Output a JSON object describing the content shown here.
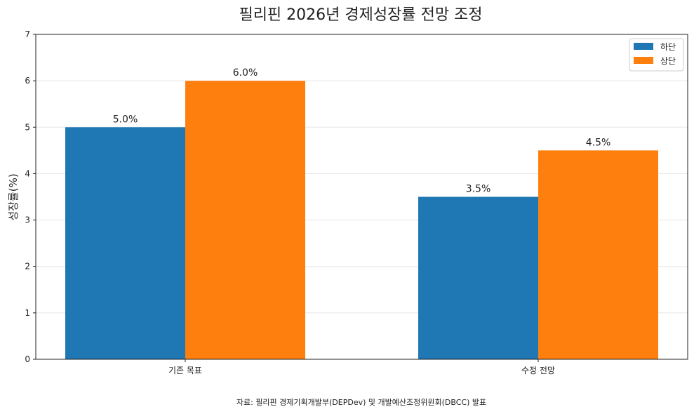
{
  "chart_data": {
    "type": "bar",
    "title": "필리핀 2026년 경제성장률 전망 조정",
    "xlabel": "",
    "ylabel": "성장률(%)",
    "categories": [
      "기존 목표",
      "수정 전망"
    ],
    "series": [
      {
        "name": "하단",
        "values": [
          5.0,
          3.5
        ],
        "labels": [
          "5.0%",
          "3.5%"
        ],
        "color": "#1f77b4"
      },
      {
        "name": "상단",
        "values": [
          6.0,
          4.5
        ],
        "labels": [
          "6.0%",
          "4.5%"
        ],
        "color": "#ff7f0e"
      }
    ],
    "ylim": [
      0,
      7
    ],
    "yticks": [
      0,
      1,
      2,
      3,
      4,
      5,
      6,
      7
    ],
    "grid": true,
    "legend_position": "top-right"
  },
  "source_note": "자료: 필리핀 경제기획개발부(DEPDev) 및 개발예산조정위원회(DBCC) 발표"
}
